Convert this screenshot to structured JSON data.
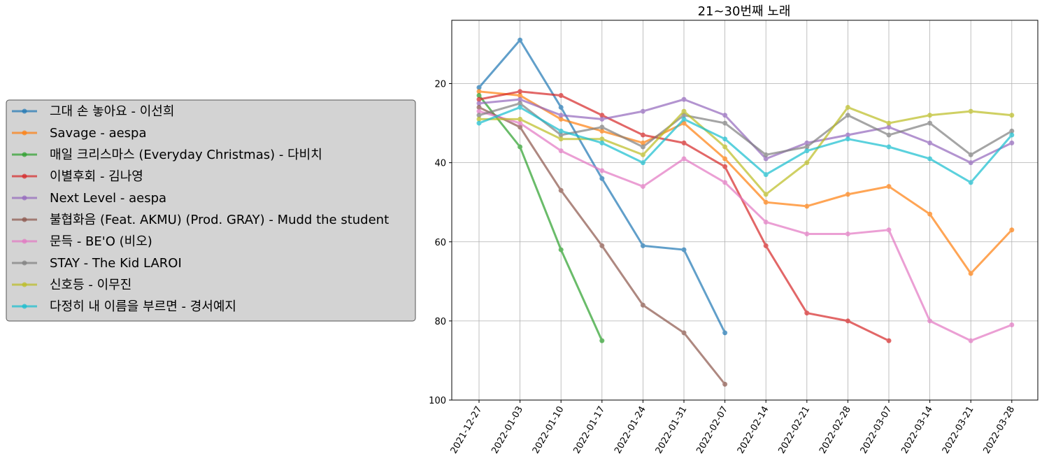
{
  "chart_data": {
    "type": "line",
    "title": "21~30번째 노래",
    "xlabel": "",
    "ylabel": "",
    "y_inverted": true,
    "ylim": [
      100,
      4
    ],
    "yticks": [
      20,
      40,
      60,
      80,
      100
    ],
    "grid": true,
    "legend_position": "left",
    "categories": [
      "2021-12-27",
      "2022-01-03",
      "2022-01-10",
      "2022-01-17",
      "2022-01-24",
      "2022-01-31",
      "2022-02-07",
      "2022-02-14",
      "2022-02-21",
      "2022-02-28",
      "2022-03-07",
      "2022-03-14",
      "2022-03-21",
      "2022-03-28"
    ],
    "series": [
      {
        "name": "그대 손 놓아요 - 이선희",
        "color": "#1f77b4",
        "values": [
          21,
          9,
          26,
          44,
          61,
          62,
          83,
          null,
          null,
          null,
          null,
          null,
          null,
          null
        ]
      },
      {
        "name": "Savage - aespa",
        "color": "#ff7f0e",
        "values": [
          22,
          23,
          29,
          32,
          35,
          30,
          39,
          50,
          51,
          48,
          46,
          53,
          68,
          57
        ]
      },
      {
        "name": "매일 크리스마스 (Everyday Christmas) - 다비치",
        "color": "#2ca02c",
        "values": [
          23,
          36,
          62,
          85,
          null,
          null,
          null,
          null,
          null,
          null,
          null,
          null,
          null,
          null
        ]
      },
      {
        "name": "이별후회 - 김나영",
        "color": "#d62728",
        "values": [
          24,
          22,
          23,
          28,
          33,
          35,
          41,
          61,
          78,
          80,
          85,
          null,
          null,
          null
        ]
      },
      {
        "name": "Next Level - aespa",
        "color": "#9467bd",
        "values": [
          25,
          24,
          28,
          29,
          27,
          24,
          28,
          39,
          35,
          33,
          31,
          35,
          40,
          35
        ]
      },
      {
        "name": "불협화음 (Feat. AKMU) (Prod. GRAY) - Mudd the student",
        "color": "#8c564b",
        "values": [
          26,
          31,
          47,
          61,
          76,
          83,
          96,
          null,
          null,
          null,
          null,
          null,
          null,
          null
        ]
      },
      {
        "name": "문득 - BE'O (비오)",
        "color": "#e377c2",
        "values": [
          27,
          30,
          37,
          42,
          46,
          39,
          45,
          55,
          58,
          58,
          57,
          80,
          85,
          81
        ]
      },
      {
        "name": "STAY - The Kid LAROI",
        "color": "#7f7f7f",
        "values": [
          28,
          25,
          33,
          31,
          36,
          28,
          30,
          38,
          36,
          28,
          33,
          30,
          38,
          32
        ]
      },
      {
        "name": "신호등 - 이무진",
        "color": "#bcbd22",
        "values": [
          29,
          29,
          34,
          34,
          38,
          27,
          36,
          48,
          40,
          26,
          30,
          28,
          27,
          28
        ]
      },
      {
        "name": "다정히 내 이름을 부르면 - 경서예지",
        "color": "#17becf",
        "values": [
          30,
          26,
          32,
          35,
          40,
          29,
          34,
          43,
          37,
          34,
          36,
          39,
          45,
          33
        ]
      }
    ]
  }
}
